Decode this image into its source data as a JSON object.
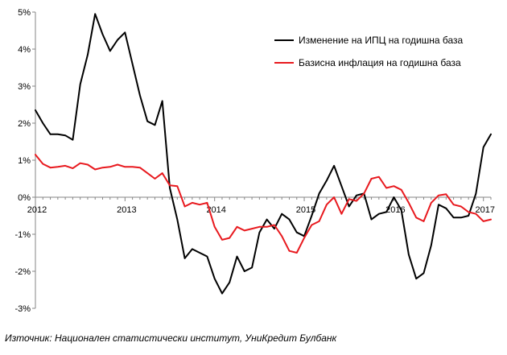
{
  "chart_data": {
    "type": "line",
    "ylim": [
      -3,
      5
    ],
    "y_ticks": [
      "5%",
      "4%",
      "3%",
      "2%",
      "1%",
      "0%",
      "-1%",
      "-2%",
      "-3%"
    ],
    "y_tick_values": [
      5,
      4,
      3,
      2,
      1,
      0,
      -1,
      -2,
      -3
    ],
    "x_tick_labels": [
      "2012",
      "2013",
      "2014",
      "2015",
      "2016",
      "2017"
    ],
    "x_tick_dates": [
      "2012-01",
      "2013-01",
      "2014-01",
      "2015-01",
      "2016-01",
      "2017-01"
    ],
    "x_range": [
      "2012-01",
      "2017-02"
    ],
    "grid": false,
    "legend_position": "top-right",
    "colors": {
      "series_0": "#000000",
      "series_1": "#e8191e"
    },
    "series": [
      {
        "name": "Изменение  на ИПЦ  на годишна база",
        "color": "#000000",
        "points": [
          [
            "2012-01",
            2.35
          ],
          [
            "2012-02",
            2.0
          ],
          [
            "2012-03",
            1.7
          ],
          [
            "2012-04",
            1.7
          ],
          [
            "2012-05",
            1.67
          ],
          [
            "2012-06",
            1.55
          ],
          [
            "2012-07",
            3.05
          ],
          [
            "2012-08",
            3.85
          ],
          [
            "2012-09",
            4.95
          ],
          [
            "2012-10",
            4.4
          ],
          [
            "2012-11",
            3.95
          ],
          [
            "2012-12",
            4.25
          ],
          [
            "2013-01",
            4.45
          ],
          [
            "2013-02",
            3.6
          ],
          [
            "2013-03",
            2.75
          ],
          [
            "2013-04",
            2.05
          ],
          [
            "2013-05",
            1.95
          ],
          [
            "2013-06",
            2.6
          ],
          [
            "2013-07",
            0.25
          ],
          [
            "2013-08",
            -0.6
          ],
          [
            "2013-09",
            -1.65
          ],
          [
            "2013-10",
            -1.4
          ],
          [
            "2013-11",
            -1.5
          ],
          [
            "2013-12",
            -1.6
          ],
          [
            "2014-01",
            -2.2
          ],
          [
            "2014-02",
            -2.6
          ],
          [
            "2014-03",
            -2.3
          ],
          [
            "2014-04",
            -1.6
          ],
          [
            "2014-05",
            -2.0
          ],
          [
            "2014-06",
            -1.9
          ],
          [
            "2014-07",
            -0.95
          ],
          [
            "2014-08",
            -0.6
          ],
          [
            "2014-09",
            -0.85
          ],
          [
            "2014-10",
            -0.45
          ],
          [
            "2014-11",
            -0.6
          ],
          [
            "2014-12",
            -0.95
          ],
          [
            "2015-01",
            -1.05
          ],
          [
            "2015-02",
            -0.5
          ],
          [
            "2015-03",
            0.1
          ],
          [
            "2015-04",
            0.45
          ],
          [
            "2015-05",
            0.85
          ],
          [
            "2015-06",
            0.3
          ],
          [
            "2015-07",
            -0.25
          ],
          [
            "2015-08",
            0.05
          ],
          [
            "2015-09",
            0.1
          ],
          [
            "2015-10",
            -0.6
          ],
          [
            "2015-11",
            -0.45
          ],
          [
            "2015-12",
            -0.4
          ],
          [
            "2016-01",
            0.0
          ],
          [
            "2016-02",
            -0.35
          ],
          [
            "2016-03",
            -1.55
          ],
          [
            "2016-04",
            -2.2
          ],
          [
            "2016-05",
            -2.05
          ],
          [
            "2016-06",
            -1.3
          ],
          [
            "2016-07",
            -0.2
          ],
          [
            "2016-08",
            -0.3
          ],
          [
            "2016-09",
            -0.55
          ],
          [
            "2016-10",
            -0.55
          ],
          [
            "2016-11",
            -0.5
          ],
          [
            "2016-12",
            0.1
          ],
          [
            "2017-01",
            1.35
          ],
          [
            "2017-02",
            1.7
          ]
        ]
      },
      {
        "name": "Базисна  инфлация  на годишна база",
        "color": "#e8191e",
        "points": [
          [
            "2012-01",
            1.15
          ],
          [
            "2012-02",
            0.9
          ],
          [
            "2012-03",
            0.8
          ],
          [
            "2012-04",
            0.82
          ],
          [
            "2012-05",
            0.85
          ],
          [
            "2012-06",
            0.78
          ],
          [
            "2012-07",
            0.92
          ],
          [
            "2012-08",
            0.88
          ],
          [
            "2012-09",
            0.75
          ],
          [
            "2012-10",
            0.8
          ],
          [
            "2012-11",
            0.82
          ],
          [
            "2012-12",
            0.88
          ],
          [
            "2013-01",
            0.82
          ],
          [
            "2013-02",
            0.82
          ],
          [
            "2013-03",
            0.8
          ],
          [
            "2013-04",
            0.65
          ],
          [
            "2013-05",
            0.5
          ],
          [
            "2013-06",
            0.65
          ],
          [
            "2013-07",
            0.32
          ],
          [
            "2013-08",
            0.3
          ],
          [
            "2013-09",
            -0.25
          ],
          [
            "2013-10",
            -0.15
          ],
          [
            "2013-11",
            -0.2
          ],
          [
            "2013-12",
            -0.15
          ],
          [
            "2014-01",
            -0.8
          ],
          [
            "2014-02",
            -1.15
          ],
          [
            "2014-03",
            -1.1
          ],
          [
            "2014-04",
            -0.8
          ],
          [
            "2014-05",
            -0.9
          ],
          [
            "2014-06",
            -0.85
          ],
          [
            "2014-07",
            -0.8
          ],
          [
            "2014-08",
            -0.8
          ],
          [
            "2014-09",
            -0.75
          ],
          [
            "2014-10",
            -1.05
          ],
          [
            "2014-11",
            -1.45
          ],
          [
            "2014-12",
            -1.5
          ],
          [
            "2015-01",
            -1.1
          ],
          [
            "2015-02",
            -0.75
          ],
          [
            "2015-03",
            -0.65
          ],
          [
            "2015-04",
            -0.2
          ],
          [
            "2015-05",
            0.0
          ],
          [
            "2015-06",
            -0.45
          ],
          [
            "2015-07",
            -0.05
          ],
          [
            "2015-08",
            -0.1
          ],
          [
            "2015-09",
            0.1
          ],
          [
            "2015-10",
            0.5
          ],
          [
            "2015-11",
            0.55
          ],
          [
            "2015-12",
            0.25
          ],
          [
            "2016-01",
            0.3
          ],
          [
            "2016-02",
            0.2
          ],
          [
            "2016-03",
            -0.15
          ],
          [
            "2016-04",
            -0.55
          ],
          [
            "2016-05",
            -0.65
          ],
          [
            "2016-06",
            -0.15
          ],
          [
            "2016-07",
            0.05
          ],
          [
            "2016-08",
            0.08
          ],
          [
            "2016-09",
            -0.2
          ],
          [
            "2016-10",
            -0.25
          ],
          [
            "2016-11",
            -0.4
          ],
          [
            "2016-12",
            -0.45
          ],
          [
            "2017-01",
            -0.65
          ],
          [
            "2017-02",
            -0.6
          ]
        ]
      }
    ]
  },
  "source_note": "Източник: Национален  статистически  институт,  УниКредит  Булбанк"
}
